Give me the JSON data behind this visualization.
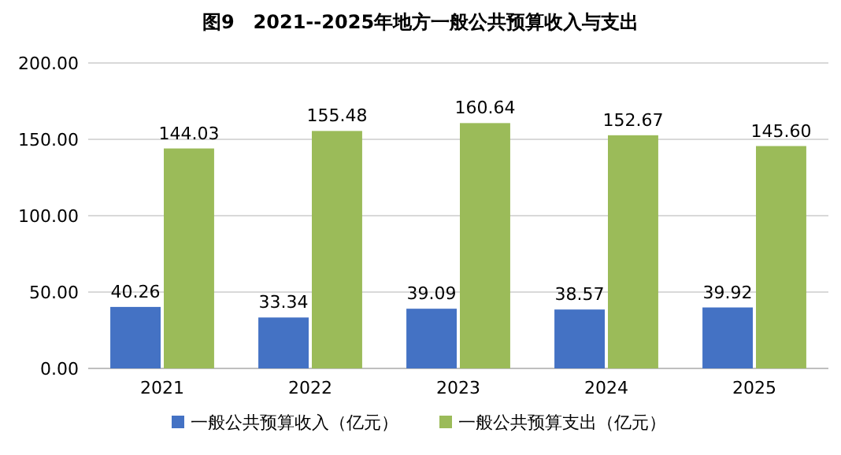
{
  "chart_data": {
    "type": "bar",
    "title": "图9　2021--2025年地方一般公共预算收入与支出",
    "categories": [
      "2021",
      "2022",
      "2023",
      "2024",
      "2025"
    ],
    "series": [
      {
        "name": "一般公共预算收入（亿元）",
        "color": "#4472c4",
        "values": [
          40.26,
          33.34,
          39.09,
          38.57,
          39.92
        ],
        "value_labels": [
          "40.26",
          "33.34",
          "39.09",
          "38.57",
          "39.92"
        ]
      },
      {
        "name": "一般公共预算支出（亿元）",
        "color": "#9bbb59",
        "values": [
          144.03,
          155.48,
          160.64,
          152.67,
          145.6
        ],
        "value_labels": [
          "144.03",
          "155.48",
          "160.64",
          "152.67",
          "145.60"
        ]
      }
    ],
    "ylim": [
      0,
      200
    ],
    "yticks": [
      {
        "value": 0,
        "label": "0.00"
      },
      {
        "value": 50,
        "label": "50.00"
      },
      {
        "value": 100,
        "label": "100.00"
      },
      {
        "value": 150,
        "label": "150.00"
      },
      {
        "value": 200,
        "label": "200.00"
      }
    ],
    "grid": "y",
    "legend": "bottom"
  }
}
